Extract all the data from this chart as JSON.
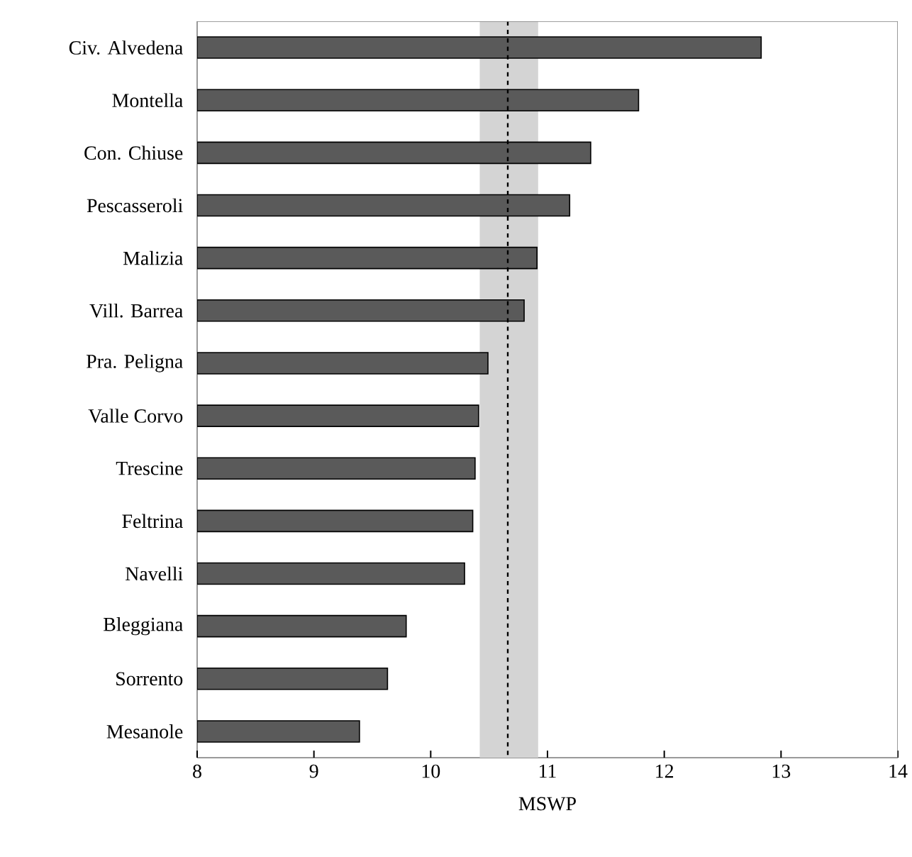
{
  "chart_data": {
    "type": "bar",
    "orientation": "horizontal",
    "xlabel": "MSWP",
    "categories": [
      "Civ. Alvedena",
      "Montella",
      "Con. Chiuse",
      "Pescasseroli",
      "Malizia",
      "Vill. Barrea",
      "Pra. Peligna",
      "Valle Corvo",
      "Trescine",
      "Feltrina",
      "Navelli",
      "Bleggiana",
      "Sorrento",
      "Mesanole"
    ],
    "values": [
      12.83,
      11.78,
      11.37,
      11.19,
      10.91,
      10.8,
      10.49,
      10.41,
      10.38,
      10.36,
      10.29,
      9.79,
      9.63,
      9.39
    ],
    "color": "#5a5a5a",
    "xlim": [
      8,
      14
    ],
    "xticks": [
      8,
      9,
      10,
      11,
      12,
      13,
      14
    ],
    "ref_lines": [
      {
        "axis": "x",
        "value": 10.66,
        "color": "#000000",
        "line_style": "dashed"
      }
    ],
    "bands": [
      {
        "axis": "x",
        "from": 10.42,
        "to": 10.92,
        "color": "#d4d4d4"
      }
    ],
    "grid": false
  }
}
